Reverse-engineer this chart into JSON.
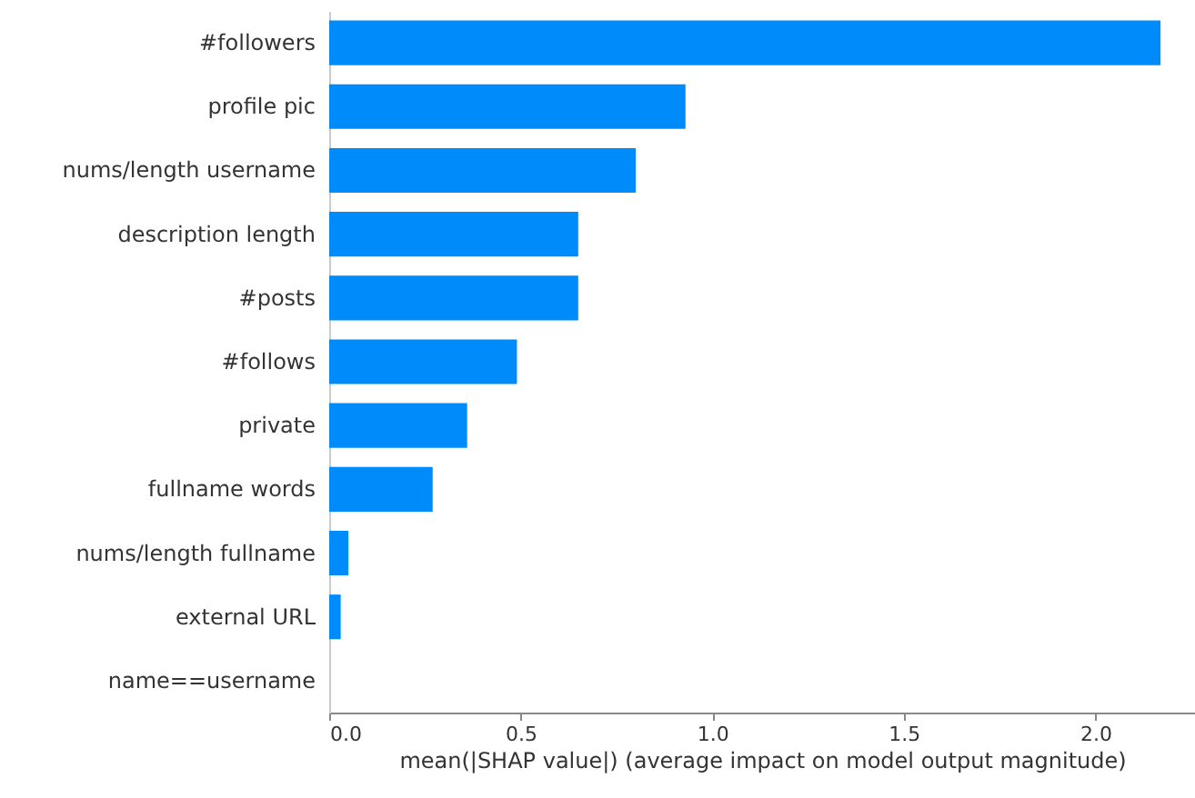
{
  "chart_data": {
    "type": "bar",
    "orientation": "horizontal",
    "xlabel": "mean(|SHAP value|) (average impact on model output magnitude)",
    "categories": [
      "#followers",
      "profile pic",
      "nums/length username",
      "description length",
      "#posts",
      "#follows",
      "private",
      "fullname words",
      "nums/length fullname",
      "external URL",
      "name==username"
    ],
    "values": [
      2.17,
      0.93,
      0.8,
      0.65,
      0.65,
      0.49,
      0.36,
      0.27,
      0.05,
      0.03,
      0
    ],
    "color": "#008bfb",
    "xlim": [
      0,
      2.26
    ],
    "xticks": [
      {
        "value": 0,
        "label": "0.0"
      },
      {
        "value": 0.5,
        "label": "0.5"
      },
      {
        "value": 1,
        "label": "1.0"
      },
      {
        "value": 1.5,
        "label": "1.5"
      },
      {
        "value": 2,
        "label": "2.0"
      }
    ],
    "grid": false
  }
}
